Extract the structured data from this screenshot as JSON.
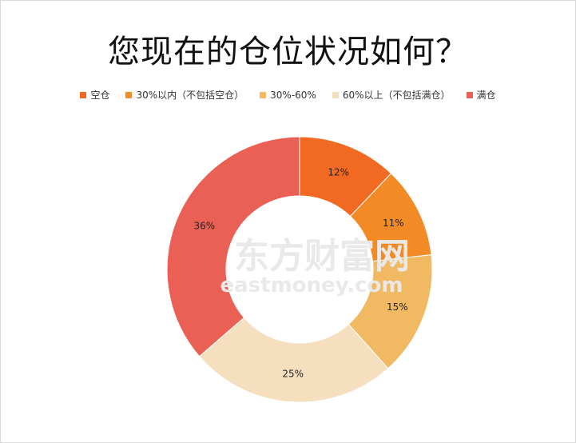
{
  "chart_data": {
    "type": "pie",
    "title": "您现在的仓位状况如何？",
    "legend_position": "top",
    "categories": [
      "空仓",
      "30%以内（不包括空仓）",
      "30%-60%",
      "60%以上（不包括满仓）",
      "满仓"
    ],
    "values": [
      12,
      11,
      15,
      25,
      36
    ],
    "labels": [
      "12%",
      "11%",
      "15%",
      "25%",
      "36%"
    ],
    "colors": [
      "#f26a21",
      "#f28b26",
      "#f0b962",
      "#f5dfbf",
      "#eb6054"
    ]
  },
  "watermark": {
    "cn": "东方财富网",
    "en": "eastmoney.com"
  }
}
